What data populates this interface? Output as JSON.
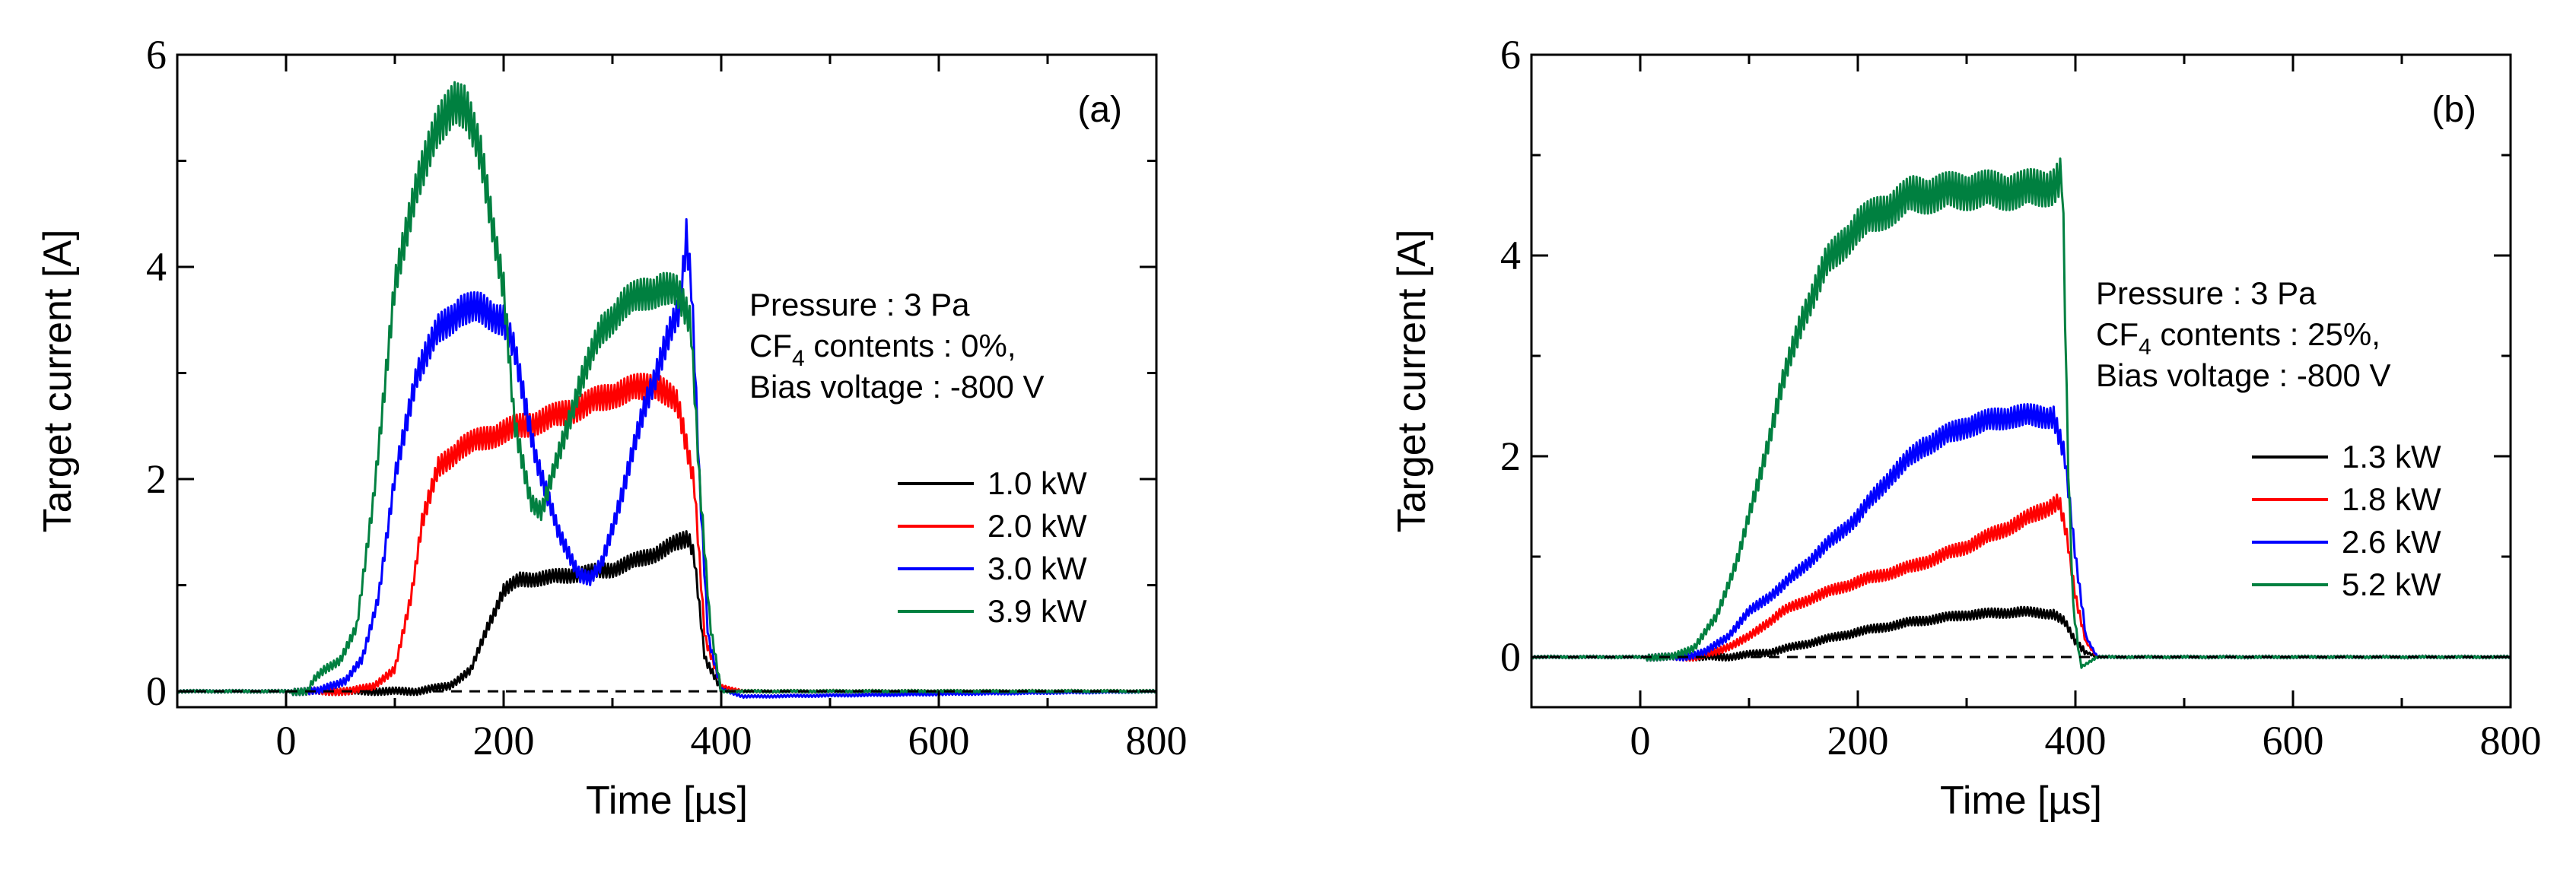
{
  "chart_data": [
    {
      "type": "line",
      "panel_label": "(a)",
      "xlabel": "Time [µs]",
      "ylabel": "Target current [A]",
      "xlim": [
        -100,
        800
      ],
      "ylim": [
        -0.15,
        6
      ],
      "xticks": [
        0,
        200,
        400,
        600,
        800
      ],
      "xtick_labels": [
        "0",
        "200",
        "400",
        "600",
        "800"
      ],
      "yticks": [
        0,
        2,
        4,
        6
      ],
      "ytick_labels": [
        "0",
        "2",
        "4",
        "6"
      ],
      "grid": false,
      "legend_position": "right-middle",
      "annotation": [
        "Pressure : 3 Pa",
        "CF",
        "4",
        " contents : 0%,",
        "Bias voltage : -800 V"
      ],
      "reference_line": {
        "y": 0,
        "style": "dashed"
      },
      "series": [
        {
          "name": "1.0 kW",
          "color": "#000000",
          "x": [
            -100,
            120,
            150,
            170,
            185,
            200,
            215,
            250,
            300,
            340,
            370,
            375,
            385,
            400,
            420,
            800
          ],
          "y": [
            0,
            0,
            0.05,
            0.2,
            0.6,
            0.95,
            1.05,
            1.08,
            1.15,
            1.3,
            1.45,
            1.3,
            0.3,
            0.02,
            0,
            0
          ]
        },
        {
          "name": "2.0 kW",
          "color": "#ff0000",
          "x": [
            -100,
            60,
            80,
            100,
            115,
            125,
            140,
            160,
            200,
            250,
            300,
            340,
            360,
            375,
            385,
            400,
            420,
            800
          ],
          "y": [
            0,
            0,
            0.05,
            0.2,
            0.9,
            1.6,
            2.1,
            2.3,
            2.45,
            2.6,
            2.8,
            2.9,
            2.7,
            2.0,
            0.5,
            0.05,
            0,
            0
          ]
        },
        {
          "name": "3.0 kW",
          "color": "#0000ff",
          "x": [
            -100,
            30,
            40,
            55,
            70,
            85,
            100,
            120,
            140,
            160,
            180,
            200,
            210,
            230,
            250,
            270,
            280,
            290,
            310,
            330,
            350,
            362,
            368,
            373,
            380,
            388,
            400,
            420,
            800
          ],
          "y": [
            0,
            0,
            0.05,
            0.1,
            0.3,
            0.9,
            2.0,
            3.0,
            3.4,
            3.6,
            3.6,
            3.5,
            3.2,
            2.2,
            1.5,
            1.1,
            1.05,
            1.2,
            1.9,
            2.7,
            3.3,
            3.6,
            4.3,
            3.8,
            2.0,
            0.5,
            0.02,
            -0.05,
            0
          ]
        },
        {
          "name": "3.9 kW",
          "color": "#008040",
          "x": [
            -100,
            20,
            25,
            35,
            50,
            65,
            80,
            100,
            120,
            140,
            155,
            165,
            180,
            200,
            210,
            225,
            235,
            250,
            270,
            290,
            310,
            330,
            345,
            360,
            372,
            380,
            390,
            400,
            420,
            800
          ],
          "y": [
            0,
            0,
            0.1,
            0.2,
            0.3,
            0.6,
            1.8,
            3.8,
            4.8,
            5.3,
            5.6,
            5.5,
            5.0,
            3.8,
            2.5,
            1.8,
            1.7,
            2.2,
            2.9,
            3.4,
            3.65,
            3.75,
            3.8,
            3.75,
            3.5,
            2.0,
            0.6,
            0.0,
            0.0,
            0
          ]
        }
      ]
    },
    {
      "type": "line",
      "panel_label": "(b)",
      "xlabel": "Time [µs]",
      "ylabel": "Target current [A]",
      "xlim": [
        -100,
        800
      ],
      "ylim": [
        -0.5,
        6
      ],
      "xticks": [
        0,
        200,
        400,
        600,
        800
      ],
      "xtick_labels": [
        "0",
        "200",
        "400",
        "600",
        "800"
      ],
      "yticks": [
        0,
        2,
        4,
        6
      ],
      "ytick_labels": [
        "0",
        "2",
        "4",
        "6"
      ],
      "grid": false,
      "legend_position": "right-middle",
      "annotation": [
        "Pressure : 3 Pa",
        "CF",
        "4",
        " contents : 25%,",
        "Bias voltage : -800 V"
      ],
      "reference_line": {
        "y": 0,
        "style": "dashed"
      },
      "series": [
        {
          "name": "1.3 kW",
          "color": "#000000",
          "x": [
            -100,
            50,
            80,
            120,
            160,
            200,
            250,
            300,
            350,
            380,
            390,
            400,
            410,
            420,
            800
          ],
          "y": [
            0,
            0,
            0,
            0.05,
            0.15,
            0.25,
            0.35,
            0.42,
            0.45,
            0.43,
            0.35,
            0.15,
            0.05,
            0,
            0
          ]
        },
        {
          "name": "1.8 kW",
          "color": "#ff0000",
          "x": [
            -100,
            50,
            70,
            100,
            130,
            160,
            200,
            250,
            300,
            350,
            385,
            392,
            400,
            410,
            420,
            800
          ],
          "y": [
            0,
            0,
            0.05,
            0.2,
            0.45,
            0.6,
            0.75,
            0.9,
            1.1,
            1.35,
            1.55,
            1.2,
            0.6,
            0.15,
            0,
            0
          ]
        },
        {
          "name": "2.6 kW",
          "color": "#0000ff",
          "x": [
            -100,
            40,
            60,
            80,
            100,
            130,
            160,
            200,
            230,
            260,
            300,
            340,
            380,
            390,
            400,
            410,
            420,
            800
          ],
          "y": [
            0,
            0,
            0.05,
            0.2,
            0.45,
            0.7,
            1.0,
            1.4,
            1.8,
            2.1,
            2.3,
            2.4,
            2.4,
            2.0,
            1.0,
            0.2,
            0,
            0
          ]
        },
        {
          "name": "5.2 kW",
          "color": "#008040",
          "x": [
            -100,
            30,
            50,
            70,
            90,
            110,
            130,
            150,
            170,
            200,
            250,
            300,
            350,
            380,
            388,
            393,
            398,
            405,
            420,
            800
          ],
          "y": [
            0,
            0,
            0.1,
            0.4,
            1.0,
            1.8,
            2.7,
            3.4,
            3.9,
            4.3,
            4.6,
            4.65,
            4.65,
            4.7,
            4.8,
            2.0,
            0.5,
            -0.1,
            0,
            0
          ]
        }
      ]
    }
  ]
}
